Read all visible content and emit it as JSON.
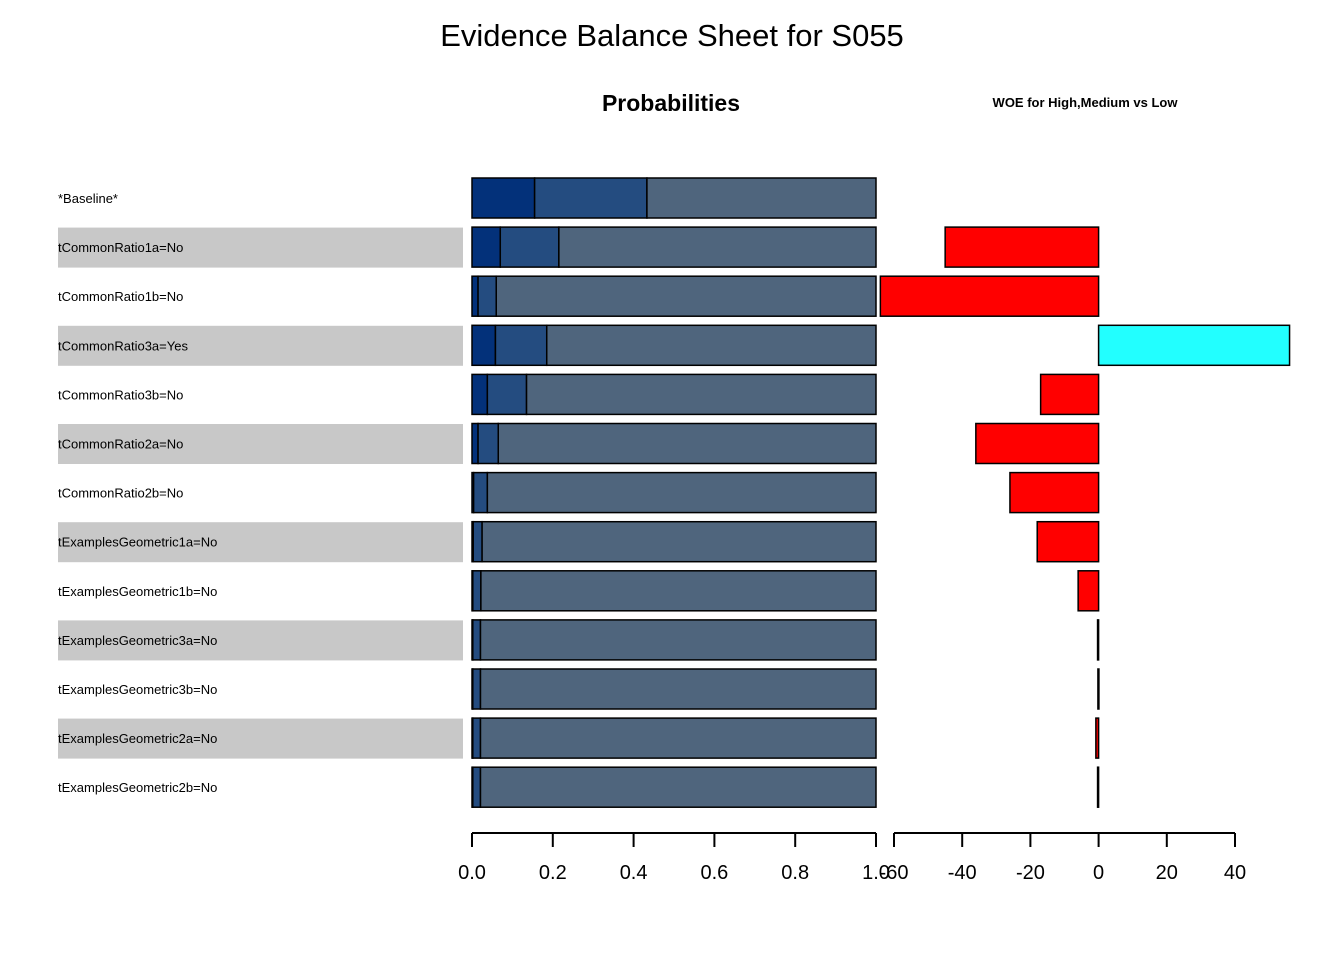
{
  "chart_data": {
    "type": "bar",
    "title": "Evidence Balance Sheet for  S055",
    "probabilities_panel": {
      "title": "Probabilities",
      "xlim": [
        0,
        1
      ],
      "ticks": [
        "0.0",
        "0.2",
        "0.4",
        "0.6",
        "0.8",
        "1.0"
      ],
      "state_colors": [
        "#03317a",
        "#244c80",
        "#4f657d"
      ]
    },
    "woe_panel": {
      "title": "WOE for  High,Medium  vs  Low",
      "xlim": [
        -65,
        56
      ],
      "ticks": [
        "-60",
        "-40",
        "-20",
        "0",
        "20",
        "40"
      ],
      "tick_values": [
        -60,
        -40,
        -20,
        0,
        20,
        40
      ],
      "colors": {
        "negative": "#ff0000",
        "positive": "#22ffff"
      }
    },
    "rows": [
      {
        "label": "*Baseline*",
        "probs": [
          0.155,
          0.278,
          0.567
        ],
        "woe": null
      },
      {
        "label": "tCommonRatio1a=No",
        "probs": [
          0.07,
          0.145,
          0.785
        ],
        "woe": -45
      },
      {
        "label": "tCommonRatio1b=No",
        "probs": [
          0.015,
          0.045,
          0.94
        ],
        "woe": -64
      },
      {
        "label": "tCommonRatio3a=Yes",
        "probs": [
          0.058,
          0.127,
          0.815
        ],
        "woe": 56
      },
      {
        "label": "tCommonRatio3b=No",
        "probs": [
          0.038,
          0.097,
          0.865
        ],
        "woe": -17
      },
      {
        "label": "tCommonRatio2a=No",
        "probs": [
          0.015,
          0.05,
          0.935
        ],
        "woe": -36
      },
      {
        "label": "tCommonRatio2b=No",
        "probs": [
          0.004,
          0.034,
          0.962
        ],
        "woe": -26
      },
      {
        "label": "tExamplesGeometric1a=No",
        "probs": [
          0.003,
          0.022,
          0.975
        ],
        "woe": -18
      },
      {
        "label": "tExamplesGeometric1b=No",
        "probs": [
          0.002,
          0.02,
          0.978
        ],
        "woe": -6
      },
      {
        "label": "tExamplesGeometric3a=No",
        "probs": [
          0.002,
          0.019,
          0.979
        ],
        "woe": -0.3
      },
      {
        "label": "tExamplesGeometric3b=No",
        "probs": [
          0.002,
          0.019,
          0.979
        ],
        "woe": -0.2
      },
      {
        "label": "tExamplesGeometric2a=No",
        "probs": [
          0.002,
          0.019,
          0.979
        ],
        "woe": -0.8
      },
      {
        "label": "tExamplesGeometric2b=No",
        "probs": [
          0.002,
          0.019,
          0.979
        ],
        "woe": -0.3
      }
    ],
    "row_shading": {
      "shaded": "#c8c8c8"
    }
  }
}
